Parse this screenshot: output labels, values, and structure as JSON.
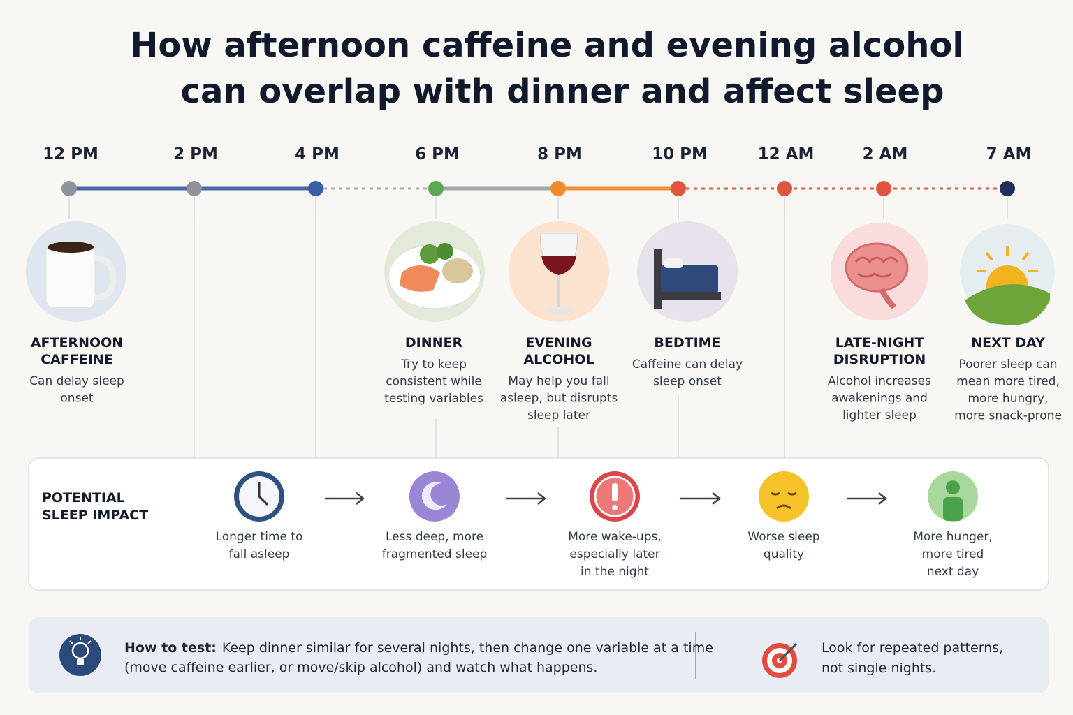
{
  "title": [
    "How afternoon caffeine and evening alcohol",
    "can overlap with dinner and affect sleep"
  ],
  "timeline": {
    "times": [
      "12 PM",
      "2 PM",
      "4 PM",
      "6 PM",
      "8 PM",
      "10 PM",
      "12 AM",
      "2 AM",
      "7 AM"
    ]
  },
  "events": [
    {
      "title": [
        "AFTERNOON",
        "CAFFEINE"
      ],
      "text": [
        "Can delay sleep",
        "onset"
      ]
    },
    {
      "title": [
        "DINNER"
      ],
      "text": [
        "Try to keep",
        "consistent while",
        "testing variables"
      ]
    },
    {
      "title": [
        "EVENING",
        "ALCOHOL"
      ],
      "text": [
        "May help you fall",
        "asleep, but disrupts",
        "sleep later"
      ]
    },
    {
      "title": [
        "BEDTIME"
      ],
      "text": [
        "Caffeine can delay",
        "sleep onset"
      ]
    },
    {
      "title": [
        "LATE-NIGHT",
        "DISRUPTION"
      ],
      "text": [
        "Alcohol increases",
        "awakenings and",
        "lighter sleep"
      ]
    },
    {
      "title": [
        "NEXT DAY"
      ],
      "text": [
        "Poorer sleep can",
        "mean more tired,",
        "more hungry,",
        "more snack-prone"
      ]
    }
  ],
  "impact": {
    "label": [
      "POTENTIAL",
      "SLEEP IMPACT"
    ],
    "items": [
      [
        "Longer time to",
        "fall asleep"
      ],
      [
        "Less deep, more",
        "fragmented sleep"
      ],
      [
        "More wake-ups,",
        "especially later",
        "in the night"
      ],
      [
        "Worse sleep",
        "quality"
      ],
      [
        "More hunger,",
        "more tired",
        "next day"
      ]
    ]
  },
  "tip": {
    "lead": "How to test:",
    "text": [
      "Keep dinner similar for several nights, then change one variable at a time",
      "(move caffeine earlier, or move/skip alcohol) and watch what happens."
    ],
    "note": [
      "Look for repeated patterns,",
      "not single nights."
    ]
  }
}
